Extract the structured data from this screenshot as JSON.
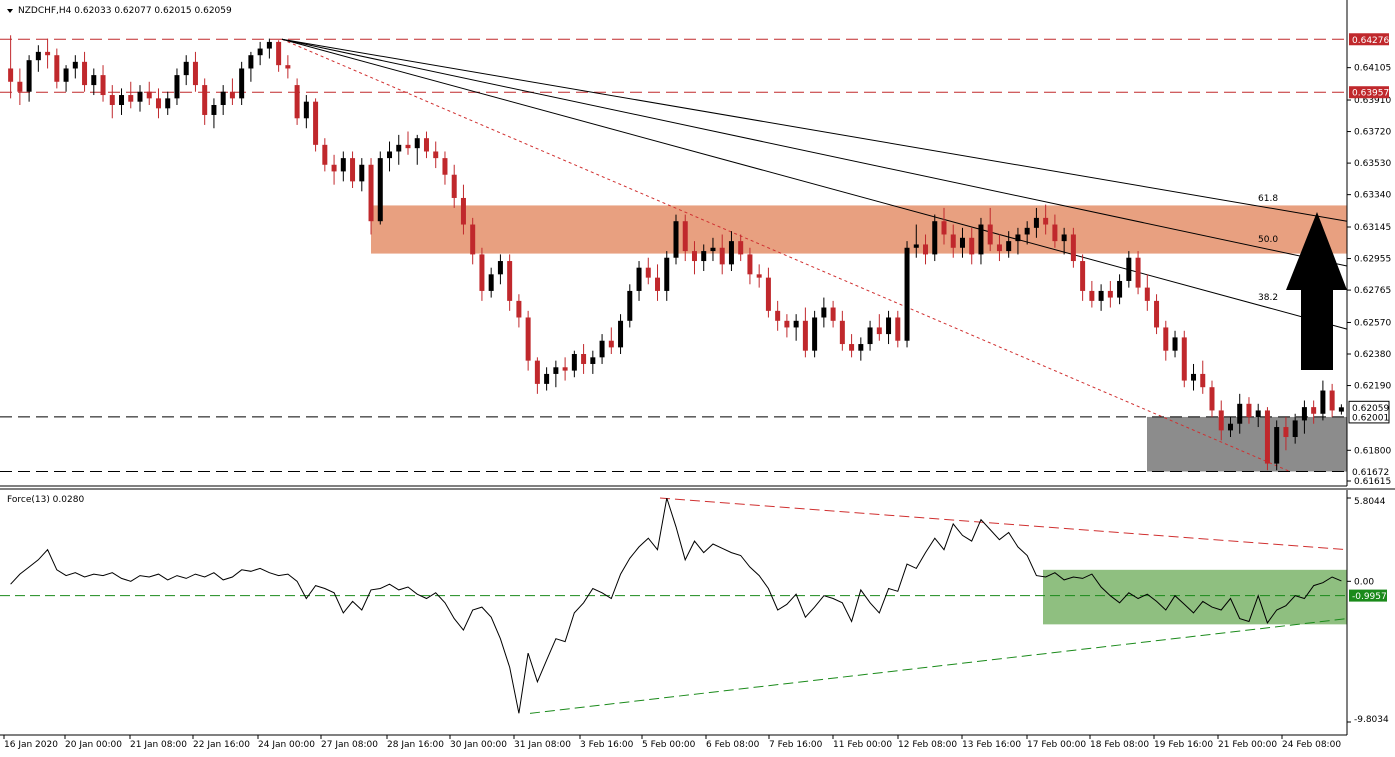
{
  "chart_data": [
    {
      "type": "candlestick",
      "symbol_header": "NZDCHF,H4",
      "ohlc_header": "0.62033 0.62077 0.62015 0.62059",
      "ylim": [
        0.61615,
        0.6438
      ],
      "price_axis_ticks": [
        "0.64276",
        "0.64105",
        "0.63957",
        "0.63910",
        "0.63720",
        "0.63530",
        "0.63340",
        "0.63145",
        "0.62955",
        "0.62765",
        "0.62570",
        "0.62380",
        "0.62190",
        "0.62059",
        "0.62001",
        "0.61800",
        "0.61672",
        "0.61615"
      ],
      "time_axis_labels": [
        "16 Jan 2020",
        "20 Jan 00:00",
        "21 Jan 08:00",
        "22 Jan 16:00",
        "24 Jan 00:00",
        "27 Jan 08:00",
        "28 Jan 16:00",
        "30 Jan 00:00",
        "31 Jan 08:00",
        "3 Feb 16:00",
        "5 Feb 00:00",
        "6 Feb 08:00",
        "7 Feb 16:00",
        "11 Feb 00:00",
        "12 Feb 08:00",
        "13 Feb 16:00",
        "17 Feb 00:00",
        "18 Feb 08:00",
        "19 Feb 16:00",
        "21 Feb 00:00",
        "24 Feb 08:00"
      ],
      "horizontal_levels": [
        {
          "price": 0.64276,
          "label": "0.64276",
          "style": "red-dashed"
        },
        {
          "price": 0.63957,
          "label": "0.63957",
          "style": "red-dashed"
        },
        {
          "price": 0.62001,
          "label": "0.62001",
          "style": "black-dashed"
        },
        {
          "price": 0.61672,
          "label": "0.61672",
          "style": "black-dashed"
        }
      ],
      "current_price": {
        "price": 0.62059,
        "label": "0.62059"
      },
      "resistance_zone": {
        "from": 0.62985,
        "to": 0.63275,
        "color": "#e8a080"
      },
      "support_zone": {
        "from": 0.61672,
        "to": 0.62001,
        "color": "#8c8c8c"
      },
      "fibonacci_fan": {
        "levels": [
          "38.2",
          "50.0",
          "61.8"
        ]
      },
      "colors": {
        "bull": "#000000",
        "bear": "#c0282c",
        "level_red": "#c0282c"
      },
      "candles": [
        [
          0.641,
          0.643,
          0.6392,
          0.6402
        ],
        [
          0.6402,
          0.641,
          0.6388,
          0.6396
        ],
        [
          0.6396,
          0.6418,
          0.639,
          0.6415
        ],
        [
          0.6415,
          0.6424,
          0.6408,
          0.642
        ],
        [
          0.642,
          0.6428,
          0.641,
          0.6418
        ],
        [
          0.6418,
          0.6422,
          0.6398,
          0.6402
        ],
        [
          0.6402,
          0.6412,
          0.6396,
          0.641
        ],
        [
          0.641,
          0.6418,
          0.6404,
          0.6414
        ],
        [
          0.6414,
          0.642,
          0.6396,
          0.64
        ],
        [
          0.64,
          0.641,
          0.6394,
          0.6406
        ],
        [
          0.6406,
          0.6412,
          0.639,
          0.6394
        ],
        [
          0.6394,
          0.64,
          0.638,
          0.6388
        ],
        [
          0.6388,
          0.6398,
          0.6382,
          0.6394
        ],
        [
          0.6394,
          0.6402,
          0.6386,
          0.639
        ],
        [
          0.639,
          0.64,
          0.6384,
          0.6396
        ],
        [
          0.6396,
          0.6402,
          0.6388,
          0.6392
        ],
        [
          0.6392,
          0.6398,
          0.638,
          0.6386
        ],
        [
          0.6386,
          0.6396,
          0.6382,
          0.6392
        ],
        [
          0.6392,
          0.641,
          0.6388,
          0.6406
        ],
        [
          0.6406,
          0.6418,
          0.64,
          0.6414
        ],
        [
          0.6414,
          0.642,
          0.6396,
          0.64
        ],
        [
          0.64,
          0.6404,
          0.6376,
          0.6382
        ],
        [
          0.6382,
          0.6392,
          0.6374,
          0.6388
        ],
        [
          0.6388,
          0.64,
          0.6382,
          0.6396
        ],
        [
          0.6396,
          0.6404,
          0.6388,
          0.6392
        ],
        [
          0.6392,
          0.6414,
          0.6388,
          0.641
        ],
        [
          0.641,
          0.642,
          0.6402,
          0.6418
        ],
        [
          0.6418,
          0.6426,
          0.6412,
          0.6422
        ],
        [
          0.6422,
          0.6428,
          0.6416,
          0.6426
        ],
        [
          0.6426,
          0.6427,
          0.6408,
          0.6412
        ],
        [
          0.6412,
          0.6418,
          0.6404,
          0.641
        ],
        [
          0.64,
          0.6404,
          0.6376,
          0.638
        ],
        [
          0.638,
          0.6394,
          0.6374,
          0.639
        ],
        [
          0.639,
          0.6392,
          0.636,
          0.6364
        ],
        [
          0.6364,
          0.6368,
          0.6348,
          0.6352
        ],
        [
          0.6352,
          0.6358,
          0.634,
          0.6348
        ],
        [
          0.6348,
          0.636,
          0.6342,
          0.6356
        ],
        [
          0.6356,
          0.636,
          0.6338,
          0.6342
        ],
        [
          0.6342,
          0.6356,
          0.6336,
          0.6352
        ],
        [
          0.6352,
          0.6356,
          0.631,
          0.6318
        ],
        [
          0.6318,
          0.636,
          0.6316,
          0.6356
        ],
        [
          0.6356,
          0.6366,
          0.6348,
          0.636
        ],
        [
          0.636,
          0.637,
          0.6352,
          0.6364
        ],
        [
          0.6364,
          0.6372,
          0.6358,
          0.6362
        ],
        [
          0.6362,
          0.637,
          0.6352,
          0.6368
        ],
        [
          0.6368,
          0.6372,
          0.6356,
          0.636
        ],
        [
          0.636,
          0.6366,
          0.635,
          0.6356
        ],
        [
          0.6356,
          0.636,
          0.634,
          0.6346
        ],
        [
          0.6346,
          0.6352,
          0.6326,
          0.6332
        ],
        [
          0.6332,
          0.634,
          0.631,
          0.6316
        ],
        [
          0.6316,
          0.632,
          0.6292,
          0.6298
        ],
        [
          0.6298,
          0.6302,
          0.627,
          0.6276
        ],
        [
          0.6276,
          0.629,
          0.6272,
          0.6286
        ],
        [
          0.6286,
          0.6298,
          0.628,
          0.6294
        ],
        [
          0.6294,
          0.6298,
          0.6264,
          0.627
        ],
        [
          0.627,
          0.6274,
          0.6254,
          0.626
        ],
        [
          0.626,
          0.6264,
          0.6228,
          0.6234
        ],
        [
          0.6234,
          0.6236,
          0.6214,
          0.622
        ],
        [
          0.622,
          0.623,
          0.6216,
          0.6226
        ],
        [
          0.6226,
          0.6234,
          0.6218,
          0.623
        ],
        [
          0.623,
          0.6236,
          0.6222,
          0.6228
        ],
        [
          0.6228,
          0.624,
          0.6224,
          0.6238
        ],
        [
          0.6238,
          0.6244,
          0.6226,
          0.6232
        ],
        [
          0.6232,
          0.624,
          0.6226,
          0.6236
        ],
        [
          0.6236,
          0.625,
          0.6232,
          0.6246
        ],
        [
          0.6246,
          0.6254,
          0.6238,
          0.6242
        ],
        [
          0.6242,
          0.6262,
          0.6238,
          0.6258
        ],
        [
          0.6258,
          0.628,
          0.6254,
          0.6276
        ],
        [
          0.6276,
          0.6294,
          0.627,
          0.629
        ],
        [
          0.629,
          0.6296,
          0.628,
          0.6284
        ],
        [
          0.6284,
          0.6292,
          0.627,
          0.6276
        ],
        [
          0.6276,
          0.63,
          0.627,
          0.6296
        ],
        [
          0.6296,
          0.6322,
          0.6292,
          0.6318
        ],
        [
          0.6318,
          0.6322,
          0.6294,
          0.63
        ],
        [
          0.63,
          0.6306,
          0.6286,
          0.6294
        ],
        [
          0.6294,
          0.6304,
          0.6288,
          0.63
        ],
        [
          0.63,
          0.6308,
          0.6294,
          0.6302
        ],
        [
          0.6302,
          0.631,
          0.6286,
          0.6292
        ],
        [
          0.6292,
          0.6312,
          0.6288,
          0.6306
        ],
        [
          0.6306,
          0.631,
          0.6294,
          0.6298
        ],
        [
          0.6298,
          0.6302,
          0.628,
          0.6286
        ],
        [
          0.6286,
          0.6292,
          0.6278,
          0.6284
        ],
        [
          0.6284,
          0.629,
          0.626,
          0.6264
        ],
        [
          0.6264,
          0.627,
          0.6252,
          0.6258
        ],
        [
          0.6258,
          0.6262,
          0.6248,
          0.6254
        ],
        [
          0.6254,
          0.6262,
          0.6246,
          0.6258
        ],
        [
          0.6258,
          0.6266,
          0.6236,
          0.624
        ],
        [
          0.624,
          0.6264,
          0.6236,
          0.626
        ],
        [
          0.626,
          0.6272,
          0.6254,
          0.6266
        ],
        [
          0.6266,
          0.627,
          0.6254,
          0.6258
        ],
        [
          0.6258,
          0.6264,
          0.624,
          0.6244
        ],
        [
          0.6244,
          0.625,
          0.6236,
          0.624
        ],
        [
          0.624,
          0.6248,
          0.6234,
          0.6244
        ],
        [
          0.6244,
          0.6258,
          0.624,
          0.6254
        ],
        [
          0.6254,
          0.6262,
          0.6246,
          0.625
        ],
        [
          0.625,
          0.6264,
          0.6244,
          0.626
        ],
        [
          0.626,
          0.6264,
          0.6242,
          0.6246
        ],
        [
          0.6246,
          0.6306,
          0.6242,
          0.6302
        ],
        [
          0.6302,
          0.6316,
          0.6296,
          0.6304
        ],
        [
          0.6304,
          0.631,
          0.6292,
          0.6298
        ],
        [
          0.6298,
          0.6322,
          0.6294,
          0.6318
        ],
        [
          0.6318,
          0.6326,
          0.6304,
          0.631
        ],
        [
          0.631,
          0.6316,
          0.6296,
          0.6302
        ],
        [
          0.6302,
          0.6314,
          0.6296,
          0.6308
        ],
        [
          0.6308,
          0.6314,
          0.6292,
          0.6298
        ],
        [
          0.6298,
          0.632,
          0.6292,
          0.6316
        ],
        [
          0.6316,
          0.6326,
          0.63,
          0.6304
        ],
        [
          0.6304,
          0.631,
          0.6294,
          0.63
        ],
        [
          0.63,
          0.6312,
          0.6296,
          0.6306
        ],
        [
          0.6306,
          0.6314,
          0.6298,
          0.631
        ],
        [
          0.631,
          0.6318,
          0.6304,
          0.6314
        ],
        [
          0.6314,
          0.6326,
          0.6308,
          0.632
        ],
        [
          0.632,
          0.6328,
          0.631,
          0.6316
        ],
        [
          0.6316,
          0.6322,
          0.6302,
          0.6306
        ],
        [
          0.6306,
          0.6314,
          0.6298,
          0.631
        ],
        [
          0.631,
          0.6314,
          0.629,
          0.6294
        ],
        [
          0.6294,
          0.6298,
          0.627,
          0.6276
        ],
        [
          0.6276,
          0.6282,
          0.6266,
          0.627
        ],
        [
          0.627,
          0.628,
          0.6264,
          0.6276
        ],
        [
          0.6276,
          0.6282,
          0.6266,
          0.6272
        ],
        [
          0.6272,
          0.6286,
          0.6268,
          0.6282
        ],
        [
          0.6282,
          0.63,
          0.6278,
          0.6296
        ],
        [
          0.6296,
          0.63,
          0.6274,
          0.6278
        ],
        [
          0.6278,
          0.6286,
          0.6264,
          0.627
        ],
        [
          0.627,
          0.6274,
          0.625,
          0.6254
        ],
        [
          0.6254,
          0.6258,
          0.6234,
          0.624
        ],
        [
          0.624,
          0.6252,
          0.6236,
          0.6248
        ],
        [
          0.6248,
          0.6252,
          0.6218,
          0.6222
        ],
        [
          0.6222,
          0.6232,
          0.6216,
          0.6226
        ],
        [
          0.6226,
          0.6234,
          0.6214,
          0.6218
        ],
        [
          0.6218,
          0.6222,
          0.62,
          0.6204
        ],
        [
          0.6204,
          0.621,
          0.6186,
          0.6192
        ],
        [
          0.6192,
          0.62,
          0.6188,
          0.6196
        ],
        [
          0.6196,
          0.6214,
          0.619,
          0.6208
        ],
        [
          0.6208,
          0.6212,
          0.6196,
          0.62
        ],
        [
          0.62,
          0.6208,
          0.6194,
          0.6204
        ],
        [
          0.6204,
          0.6206,
          0.6168,
          0.6172
        ],
        [
          0.6172,
          0.6198,
          0.6168,
          0.6194
        ],
        [
          0.6194,
          0.62,
          0.618,
          0.6188
        ],
        [
          0.6188,
          0.6202,
          0.6184,
          0.6198
        ],
        [
          0.6198,
          0.621,
          0.619,
          0.6206
        ],
        [
          0.6206,
          0.621,
          0.6196,
          0.6202
        ],
        [
          0.6202,
          0.6222,
          0.6198,
          0.6216
        ],
        [
          0.6216,
          0.622,
          0.62,
          0.6204
        ],
        [
          0.62033,
          0.62077,
          0.62015,
          0.62059
        ]
      ]
    },
    {
      "type": "line",
      "indicator_header": "Force(13) 0.0280",
      "ylim": [
        -9.8034,
        5.8044
      ],
      "axis_ticks": [
        "5.8044",
        "0.00",
        "-0.9957",
        "-9.8034"
      ],
      "signal_level": {
        "value": -0.9957,
        "label": "-0.9957"
      },
      "zero_level": 0.0,
      "highlight_zone": {
        "from": -3.0,
        "to": 0.8,
        "color": "#8fbf80"
      },
      "colors": {
        "line": "#000000",
        "upper_trend": "#d03030",
        "lower_trend": "#1a8a1a",
        "signal": "#1a8a1a"
      },
      "values": [
        -0.2,
        0.5,
        1.0,
        1.5,
        2.2,
        0.8,
        0.4,
        0.6,
        0.3,
        0.5,
        0.4,
        0.6,
        0.2,
        0.0,
        0.4,
        0.3,
        0.5,
        0.1,
        0.4,
        0.2,
        0.5,
        0.3,
        0.6,
        0.1,
        0.3,
        0.8,
        0.7,
        0.9,
        0.6,
        0.4,
        0.5,
        0.0,
        -1.2,
        -0.3,
        -0.5,
        -0.8,
        -2.2,
        -1.4,
        -2.0,
        -0.6,
        -0.5,
        -0.2,
        -0.6,
        -0.4,
        -0.9,
        -1.2,
        -0.8,
        -1.5,
        -2.6,
        -3.4,
        -2.0,
        -1.8,
        -2.5,
        -4.0,
        -6.0,
        -9.2,
        -5.0,
        -7.0,
        -5.5,
        -4.0,
        -4.2,
        -2.2,
        -1.5,
        -0.5,
        -0.8,
        -1.2,
        0.5,
        1.6,
        2.4,
        3.0,
        2.2,
        5.8,
        3.8,
        1.5,
        2.8,
        2.0,
        2.6,
        2.3,
        2.0,
        1.8,
        1.0,
        0.4,
        -0.5,
        -2.0,
        -1.6,
        -0.9,
        -2.5,
        -1.8,
        -1.0,
        -1.2,
        -1.5,
        -2.8,
        -0.6,
        -1.5,
        -2.2,
        -0.5,
        -0.7,
        1.2,
        0.9,
        2.0,
        3.0,
        2.2,
        4.0,
        3.2,
        2.8,
        4.3,
        3.6,
        2.9,
        3.4,
        2.4,
        1.8,
        0.4,
        0.3,
        0.6,
        0.1,
        0.3,
        0.2,
        0.5,
        -0.4,
        -1.0,
        -1.5,
        -0.8,
        -1.2,
        -0.9,
        -1.4,
        -2.0,
        -1.0,
        -1.6,
        -2.2,
        -1.4,
        -1.8,
        -2.0,
        -1.2,
        -2.6,
        -2.8,
        -1.0,
        -2.9,
        -2.0,
        -1.7,
        -1.0,
        -1.2,
        -0.3,
        -0.1,
        0.3,
        0.028
      ]
    }
  ]
}
